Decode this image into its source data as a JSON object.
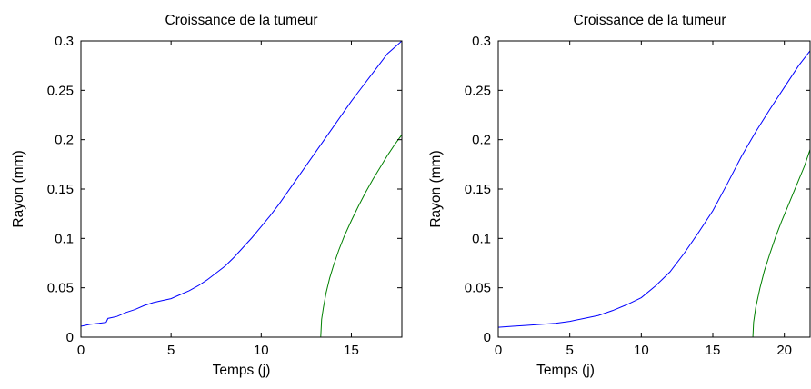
{
  "chart_data": [
    {
      "type": "line",
      "title": "Croissance de la tumeur",
      "xlabel": "Temps (j)",
      "ylabel": "Rayon (mm)",
      "xlim": [
        0,
        17.8
      ],
      "ylim": [
        0,
        0.3
      ],
      "xticks": [
        0,
        5,
        10,
        15
      ],
      "yticks": [
        0,
        0.05,
        0.1,
        0.15,
        0.2,
        0.25,
        0.3
      ],
      "ytick_labels": [
        "0",
        "0.05",
        "0.1",
        "0.15",
        "0.2",
        "0.25",
        "0.3"
      ],
      "grid": false,
      "series": [
        {
          "color": "#0000ff",
          "x": [
            0,
            0.5,
            1.0,
            1.4,
            1.5,
            2.0,
            2.5,
            3.0,
            3.5,
            4.0,
            4.5,
            5.0,
            5.5,
            6.0,
            6.5,
            7.0,
            7.5,
            8.0,
            8.5,
            9.0,
            9.5,
            10.0,
            10.5,
            11.0,
            11.5,
            12.0,
            12.5,
            13.0,
            13.5,
            14.0,
            14.5,
            15.0,
            15.5,
            16.0,
            16.5,
            17.0,
            17.5,
            17.8
          ],
          "y": [
            0.011,
            0.013,
            0.014,
            0.015,
            0.019,
            0.021,
            0.025,
            0.028,
            0.032,
            0.035,
            0.037,
            0.039,
            0.043,
            0.047,
            0.052,
            0.058,
            0.065,
            0.072,
            0.081,
            0.091,
            0.101,
            0.112,
            0.123,
            0.135,
            0.148,
            0.161,
            0.174,
            0.187,
            0.2,
            0.213,
            0.226,
            0.239,
            0.251,
            0.263,
            0.275,
            0.287,
            0.295,
            0.3
          ]
        },
        {
          "color": "#008000",
          "x": [
            0,
            13.3,
            13.35,
            13.45,
            13.6,
            13.8,
            14.0,
            14.3,
            14.6,
            15.0,
            15.4,
            15.8,
            16.2,
            16.6,
            17.0,
            17.4,
            17.8
          ],
          "y": [
            0,
            0,
            0.018,
            0.03,
            0.045,
            0.06,
            0.072,
            0.088,
            0.102,
            0.118,
            0.133,
            0.147,
            0.16,
            0.172,
            0.184,
            0.195,
            0.205
          ]
        }
      ]
    },
    {
      "type": "line",
      "title": "Croissance de la tumeur",
      "xlabel": "Temps (j)",
      "ylabel": "Rayon (mm)",
      "xlim": [
        0,
        21.8
      ],
      "ylim": [
        0,
        0.3
      ],
      "xticks": [
        0,
        5,
        10,
        15,
        20
      ],
      "yticks": [
        0,
        0.05,
        0.1,
        0.15,
        0.2,
        0.25,
        0.3
      ],
      "ytick_labels": [
        "0",
        "0.05",
        "0.1",
        "0.15",
        "0.2",
        "0.25",
        "0.3"
      ],
      "grid": false,
      "series": [
        {
          "color": "#0000ff",
          "x": [
            0,
            1,
            2,
            3,
            4,
            5,
            6,
            7,
            8,
            9,
            10,
            11,
            12,
            13,
            14,
            15,
            16,
            17,
            18,
            19,
            20,
            21,
            21.8
          ],
          "y": [
            0.01,
            0.011,
            0.012,
            0.013,
            0.014,
            0.016,
            0.019,
            0.022,
            0.027,
            0.033,
            0.04,
            0.052,
            0.066,
            0.085,
            0.106,
            0.128,
            0.155,
            0.183,
            0.208,
            0.231,
            0.253,
            0.275,
            0.29
          ]
        },
        {
          "color": "#008000",
          "x": [
            0,
            17.8,
            17.85,
            18.0,
            18.3,
            18.6,
            19.0,
            19.4,
            19.8,
            20.2,
            20.6,
            21.0,
            21.4,
            21.8
          ],
          "y": [
            0,
            0,
            0.015,
            0.03,
            0.05,
            0.067,
            0.085,
            0.102,
            0.117,
            0.131,
            0.145,
            0.159,
            0.173,
            0.19
          ]
        }
      ]
    }
  ]
}
